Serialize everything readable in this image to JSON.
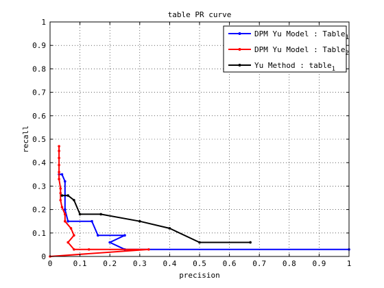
{
  "chart_data": {
    "type": "line",
    "title": "table PR curve",
    "xlabel": "precision",
    "ylabel": "recall",
    "xlim": [
      0,
      1
    ],
    "ylim": [
      0,
      1
    ],
    "xticks": [
      0,
      0.1,
      0.2,
      0.3,
      0.4,
      0.5,
      0.6,
      0.7,
      0.8,
      0.9,
      1
    ],
    "yticks": [
      0,
      0.1,
      0.2,
      0.3,
      0.4,
      0.5,
      0.6,
      0.7,
      0.8,
      0.9,
      1
    ],
    "xtick_labels": [
      "0",
      "0.1",
      "0.2",
      "0.3",
      "0.4",
      "0.5",
      "0.6",
      "0.7",
      "0.8",
      "0.9",
      "1"
    ],
    "ytick_labels": [
      "0",
      "0.1",
      "0.2",
      "0.3",
      "0.4",
      "0.5",
      "0.6",
      "0.7",
      "0.8",
      "0.9",
      "1"
    ],
    "grid": true,
    "legend_position": "top-right",
    "series": [
      {
        "name": "DPM Yu Model : Table",
        "subscript": "1",
        "color": "#0000ff",
        "points": [
          [
            1.0,
            0.03
          ],
          [
            0.25,
            0.03
          ],
          [
            0.2,
            0.06
          ],
          [
            0.25,
            0.09
          ],
          [
            0.16,
            0.09
          ],
          [
            0.14,
            0.15
          ],
          [
            0.06,
            0.15
          ],
          [
            0.05,
            0.2
          ],
          [
            0.05,
            0.26
          ],
          [
            0.05,
            0.32
          ],
          [
            0.04,
            0.35
          ],
          [
            0.03,
            0.35
          ]
        ]
      },
      {
        "name": "DPM Yu Model : Table",
        "subscript": "2",
        "color": "#ff0000",
        "points": [
          [
            0.0,
            0.0
          ],
          [
            0.33,
            0.03
          ],
          [
            0.13,
            0.03
          ],
          [
            0.08,
            0.03
          ],
          [
            0.06,
            0.06
          ],
          [
            0.08,
            0.09
          ],
          [
            0.07,
            0.12
          ],
          [
            0.05,
            0.15
          ],
          [
            0.05,
            0.18
          ],
          [
            0.04,
            0.21
          ],
          [
            0.035,
            0.24
          ],
          [
            0.035,
            0.27
          ],
          [
            0.035,
            0.29
          ],
          [
            0.03,
            0.33
          ],
          [
            0.03,
            0.36
          ],
          [
            0.03,
            0.39
          ],
          [
            0.03,
            0.42
          ],
          [
            0.03,
            0.45
          ],
          [
            0.03,
            0.47
          ]
        ]
      },
      {
        "name": "Yu Method : table",
        "subscript": "1",
        "color": "#000000",
        "points": [
          [
            0.67,
            0.06
          ],
          [
            0.5,
            0.06
          ],
          [
            0.4,
            0.12
          ],
          [
            0.3,
            0.15
          ],
          [
            0.17,
            0.18
          ],
          [
            0.1,
            0.18
          ],
          [
            0.08,
            0.24
          ],
          [
            0.06,
            0.26
          ],
          [
            0.04,
            0.26
          ]
        ]
      }
    ]
  }
}
